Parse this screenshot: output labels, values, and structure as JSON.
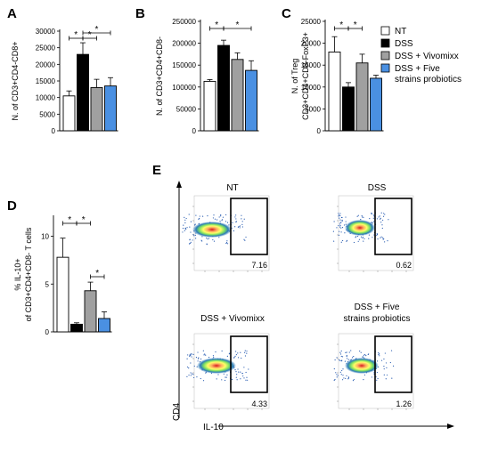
{
  "panels": [
    "A",
    "B",
    "C",
    "D",
    "E"
  ],
  "legend": {
    "items": [
      {
        "label": "NT",
        "color": "#ffffff"
      },
      {
        "label": "DSS",
        "color": "#000000"
      },
      {
        "label": "DSS + Vivomixx",
        "color": "#a0a0a0"
      },
      {
        "label": "DSS + Five",
        "label2": "strains probiotics",
        "color": "#4a90e2"
      }
    ]
  },
  "chart_data": [
    {
      "type": "bar",
      "panel": "A",
      "categories": [
        "NT",
        "DSS",
        "DSS + Vivomixx",
        "DSS + Five strains probiotics"
      ],
      "values": [
        10500,
        23000,
        13000,
        13500
      ],
      "errors": [
        1500,
        3500,
        2500,
        2500
      ],
      "ylabel": "N. of CD3+CD4-CD8+",
      "ylim": [
        0,
        30000
      ],
      "yticks": [
        "0",
        "5000",
        "10000",
        "15000",
        "20000",
        "25000",
        "30000"
      ],
      "significance": [
        "*",
        "*",
        "*"
      ]
    },
    {
      "type": "bar",
      "panel": "B",
      "categories": [
        "NT",
        "DSS",
        "DSS + Vivomixx",
        "DSS + Five strains probiotics"
      ],
      "values": [
        113000,
        195000,
        163000,
        138000
      ],
      "errors": [
        4000,
        12000,
        15000,
        22000
      ],
      "ylabel": "N. of CD3+CD4+CD8-",
      "ylim": [
        0,
        250000
      ],
      "yticks": [
        "0",
        "50000",
        "100000",
        "150000",
        "200000",
        "250000"
      ],
      "significance": [
        "*",
        "*"
      ]
    },
    {
      "type": "bar",
      "panel": "C",
      "categories": [
        "NT",
        "DSS",
        "DSS + Vivomixx",
        "DSS + Five strains probiotics"
      ],
      "values": [
        18000,
        10000,
        15500,
        12000
      ],
      "errors": [
        3500,
        1000,
        2000,
        700
      ],
      "ylabel": "N. of Treg",
      "ylabel2": "CD3+CD4+CD8-FoxP3+",
      "ylim": [
        0,
        25000
      ],
      "yticks": [
        "0",
        "5000",
        "10000",
        "15000",
        "20000",
        "25000"
      ],
      "significance": [
        "*",
        "*"
      ]
    },
    {
      "type": "bar",
      "panel": "D",
      "categories": [
        "NT",
        "DSS",
        "DSS + Vivomixx",
        "DSS + Five strains probiotics"
      ],
      "values": [
        7.8,
        0.8,
        4.3,
        1.4
      ],
      "errors": [
        2.0,
        0.15,
        0.9,
        0.7
      ],
      "ylabel": "% IL-10+",
      "ylabel2": "of CD3+CD4+CD8- T cells",
      "ylim": [
        0,
        12
      ],
      "yticks": [
        "0",
        "5",
        "10"
      ],
      "significance": [
        "*",
        "*",
        "*"
      ]
    }
  ],
  "flow": {
    "xlabel": "IL-10",
    "ylabel": "CD4",
    "plots": [
      {
        "title": "NT",
        "title2": "",
        "gate_value": "7.16"
      },
      {
        "title": "DSS",
        "title2": "",
        "gate_value": "0.62"
      },
      {
        "title": "DSS + Vivomixx",
        "title2": "",
        "gate_value": "4.33"
      },
      {
        "title": "DSS + Five",
        "title2": "strains probiotics",
        "gate_value": "1.26"
      }
    ]
  }
}
